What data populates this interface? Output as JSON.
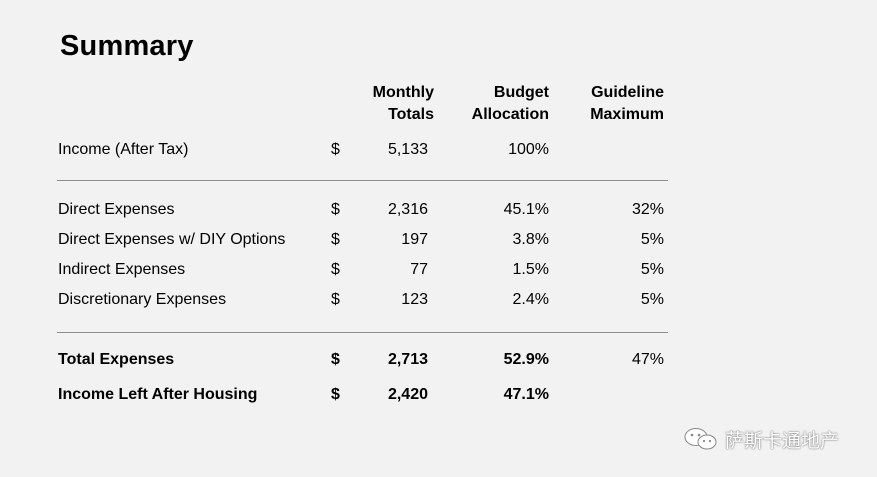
{
  "title": "Summary",
  "headers": {
    "monthly": [
      "Monthly",
      "Totals"
    ],
    "budget": [
      "Budget",
      "Allocation"
    ],
    "guideline": [
      "Guideline",
      "Maximum"
    ]
  },
  "income": {
    "label": "Income (After Tax)",
    "currency": "$",
    "amount": "5,133",
    "allocation": "100%",
    "guideline": ""
  },
  "expenses": [
    {
      "label": "Direct Expenses",
      "currency": "$",
      "amount": "2,316",
      "allocation": "45.1%",
      "guideline": "32%"
    },
    {
      "label": "Direct Expenses w/ DIY Options",
      "currency": "$",
      "amount": "197",
      "allocation": "3.8%",
      "guideline": "5%"
    },
    {
      "label": "Indirect Expenses",
      "currency": "$",
      "amount": "77",
      "allocation": "1.5%",
      "guideline": "5%"
    },
    {
      "label": "Discretionary Expenses",
      "currency": "$",
      "amount": "123",
      "allocation": "2.4%",
      "guideline": "5%"
    }
  ],
  "totals": [
    {
      "label": "Total Expenses",
      "currency": "$",
      "amount": "2,713",
      "allocation": "52.9%",
      "guideline": "47%"
    },
    {
      "label": "Income Left After Housing",
      "currency": "$",
      "amount": "2,420",
      "allocation": "47.1%",
      "guideline": ""
    }
  ],
  "watermark": {
    "text": "萨斯卡通地产",
    "icon": "wechat-icon"
  }
}
